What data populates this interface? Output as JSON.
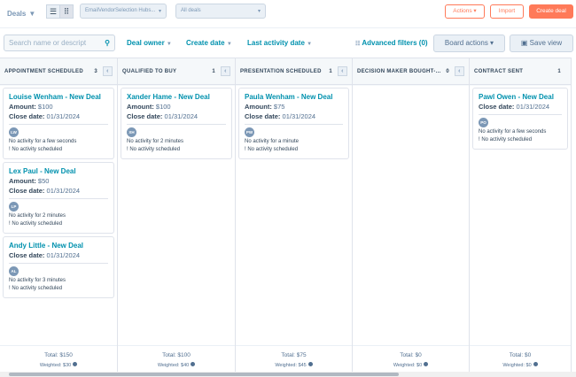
{
  "header": {
    "title": "Deals",
    "pipeline": "EmailVendorSelection Hubs...",
    "view": "All deals",
    "actions": "Actions",
    "import": "Import",
    "create": "Create deal"
  },
  "filters": {
    "search_placeholder": "Search name or descript",
    "deal_owner": "Deal owner",
    "create_date": "Create date",
    "last_activity": "Last activity date",
    "advanced": "Advanced filters (0)",
    "board_actions": "Board actions",
    "save_view": "Save view"
  },
  "columns": [
    {
      "name": "APPOINTMENT SCHEDULED",
      "count": "3",
      "total": "Total: $150",
      "weighted": "Weighted: $30",
      "cards": [
        {
          "name": "Louise Wenham - New Deal",
          "amount": "$100",
          "close": "01/31/2024",
          "initials": "LW",
          "activity": "No activity for a few seconds",
          "scheduled": "! No activity scheduled"
        },
        {
          "name": "Lex Paul - New Deal",
          "amount": "$50",
          "close": "01/31/2024",
          "initials": "LP",
          "activity": "No activity for 2 minutes",
          "scheduled": "! No activity scheduled"
        },
        {
          "name": "Andy Little - New Deal",
          "close": "01/31/2024",
          "initials": "AL",
          "activity": "No activity for 3 minutes",
          "scheduled": "! No activity scheduled"
        }
      ]
    },
    {
      "name": "QUALIFIED TO BUY",
      "count": "1",
      "total": "Total: $100",
      "weighted": "Weighted: $40",
      "cards": [
        {
          "name": "Xander Hame - New Deal",
          "amount": "$100",
          "close": "01/31/2024",
          "initials": "XH",
          "activity": "No activity for 2 minutes",
          "scheduled": "! No activity scheduled"
        }
      ]
    },
    {
      "name": "PRESENTATION SCHEDULED",
      "count": "1",
      "total": "Total: $75",
      "weighted": "Weighted: $45",
      "cards": [
        {
          "name": "Paula Wenham - New Deal",
          "amount": "$75",
          "close": "01/31/2024",
          "initials": "PW",
          "activity": "No activity for a minute",
          "scheduled": "! No activity scheduled"
        }
      ]
    },
    {
      "name": "DECISION MAKER BOUGHT-...",
      "count": "0",
      "total": "Total: $0",
      "weighted": "Weighted: $0",
      "cards": []
    },
    {
      "name": "CONTRACT SENT",
      "count": "1",
      "total": "Total: $0",
      "weighted": "Weighted: $0",
      "cards": [
        {
          "name": "Pawl Owen - New Deal",
          "close": "01/31/2024",
          "initials": "PO",
          "activity": "No activity for a few seconds",
          "scheduled": "! No activity scheduled"
        }
      ]
    }
  ],
  "labels": {
    "amount": "Amount:",
    "close": "Close date:"
  }
}
